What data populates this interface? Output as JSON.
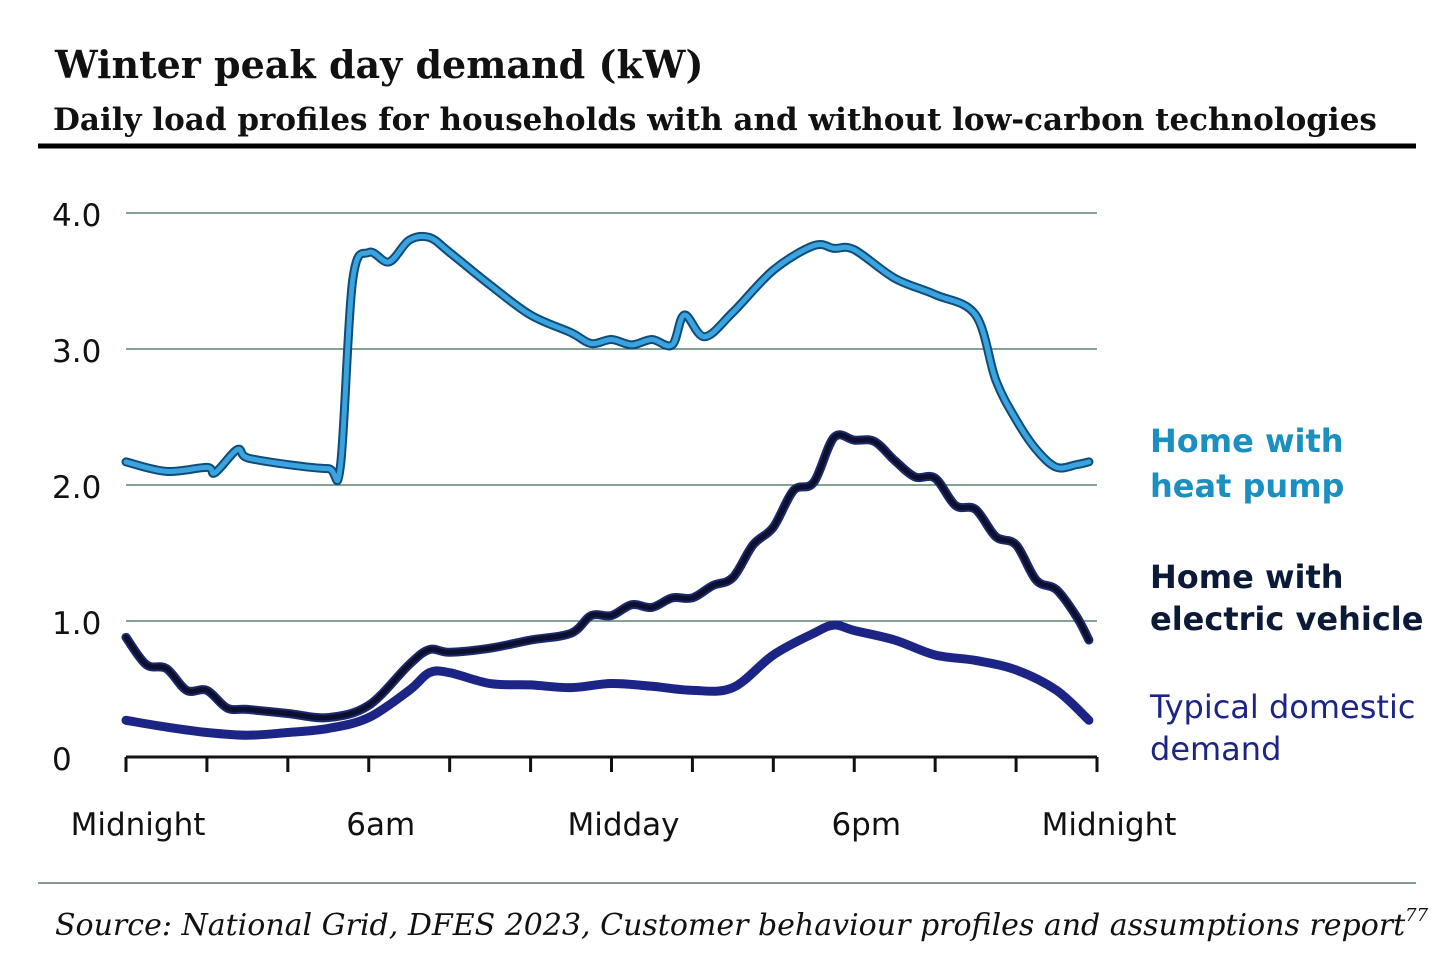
{
  "chart_data": {
    "type": "line",
    "title": "Winter peak day demand (kW)",
    "subtitle": "Daily load profiles for households with and without low-carbon technologies",
    "xlabel": "",
    "ylabel": "",
    "xlim": [
      0,
      24
    ],
    "ylim": [
      0,
      4
    ],
    "yticks": [
      {
        "v": 0,
        "label": "0"
      },
      {
        "v": 1,
        "label": "1.0"
      },
      {
        "v": 2,
        "label": "2.0"
      },
      {
        "v": 3,
        "label": "3.0"
      },
      {
        "v": 4,
        "label": "4.0"
      }
    ],
    "xticks": [
      {
        "v": 0,
        "label": "Midnight"
      },
      {
        "v": 6,
        "label": "6am"
      },
      {
        "v": 12,
        "label": "Midday"
      },
      {
        "v": 18,
        "label": "6pm"
      },
      {
        "v": 24,
        "label": "Midnight"
      }
    ],
    "grid": true,
    "legend": "right",
    "series": [
      {
        "name": "Home with heat pump",
        "legend_lines": [
          "Home with",
          "heat pump"
        ],
        "color": "#3ba3dd",
        "outline": "#0e4c7a",
        "x": [
          0,
          1,
          2,
          2.2,
          2.75,
          3,
          4,
          5,
          5.3,
          5.6,
          6,
          6.5,
          7,
          7.5,
          8,
          9,
          10,
          11,
          11.5,
          12,
          12.5,
          13,
          13.5,
          13.8,
          14.3,
          15,
          16,
          17,
          17.5,
          18,
          19,
          20,
          21,
          21.5,
          22,
          22.5,
          23,
          23.5,
          23.8
        ],
        "y": [
          2.17,
          2.1,
          2.13,
          2.09,
          2.26,
          2.2,
          2.15,
          2.12,
          2.14,
          3.5,
          3.71,
          3.64,
          3.8,
          3.82,
          3.71,
          3.47,
          3.25,
          3.12,
          3.04,
          3.07,
          3.03,
          3.07,
          3.03,
          3.25,
          3.09,
          3.27,
          3.58,
          3.76,
          3.74,
          3.73,
          3.52,
          3.4,
          3.25,
          2.77,
          2.48,
          2.26,
          2.13,
          2.15,
          2.17
        ]
      },
      {
        "name": "Home with electric vehicle",
        "legend_lines": [
          "Home with",
          "electric vehicle"
        ],
        "color": "#0c0f2e",
        "outline": "#1b2a6b",
        "x": [
          0,
          0.5,
          1,
          1.5,
          2,
          2.5,
          3,
          4,
          5,
          6,
          7,
          7.5,
          8,
          9,
          10,
          11,
          11.5,
          12,
          12.5,
          13,
          13.5,
          14,
          14.5,
          15,
          15.5,
          16,
          16.5,
          17,
          17.5,
          18,
          18.5,
          19,
          19.5,
          20,
          20.5,
          21,
          21.5,
          22,
          22.5,
          23,
          23.5,
          23.8
        ],
        "y": [
          0.88,
          0.68,
          0.65,
          0.49,
          0.49,
          0.36,
          0.35,
          0.32,
          0.29,
          0.38,
          0.68,
          0.79,
          0.77,
          0.8,
          0.86,
          0.91,
          1.04,
          1.04,
          1.12,
          1.1,
          1.17,
          1.17,
          1.26,
          1.32,
          1.56,
          1.69,
          1.96,
          2.02,
          2.35,
          2.33,
          2.32,
          2.18,
          2.06,
          2.05,
          1.85,
          1.82,
          1.62,
          1.56,
          1.3,
          1.23,
          1.03,
          0.86
        ]
      },
      {
        "name": "Typical domestic demand",
        "legend_lines": [
          "Typical domestic",
          "demand"
        ],
        "color": "#1c2585",
        "outline": "#1c2585",
        "x": [
          0,
          1,
          2,
          3,
          4,
          5,
          6,
          7,
          7.5,
          8,
          9,
          10,
          11,
          12,
          13,
          14,
          15,
          16,
          17,
          17.5,
          18,
          19,
          20,
          21,
          22,
          23,
          23.8
        ],
        "y": [
          0.27,
          0.22,
          0.18,
          0.16,
          0.18,
          0.21,
          0.29,
          0.49,
          0.62,
          0.62,
          0.54,
          0.53,
          0.51,
          0.54,
          0.52,
          0.49,
          0.51,
          0.75,
          0.91,
          0.97,
          0.93,
          0.86,
          0.75,
          0.71,
          0.64,
          0.49,
          0.27
        ]
      }
    ],
    "source": "Source: National Grid, DFES 2023, Customer behaviour profiles and assumptions report",
    "source_footnote": "77"
  }
}
